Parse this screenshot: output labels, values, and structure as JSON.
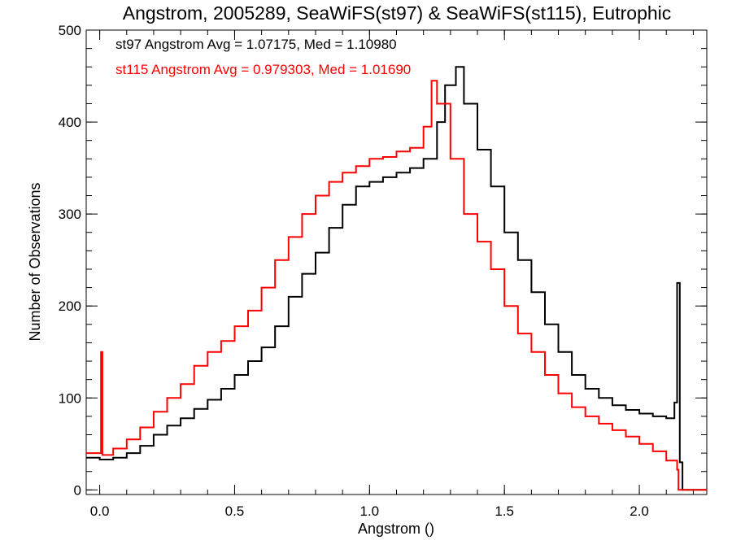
{
  "chart_data": {
    "type": "line",
    "title": "Angstrom, 2005289, SeaWiFS(st97) & SeaWiFS(st115), Eutrophic",
    "xlabel": "Angstrom ()",
    "ylabel": "Number of Observations",
    "xlim": [
      -0.05,
      2.25
    ],
    "ylim": [
      -5,
      500
    ],
    "x_ticks": [
      0.0,
      0.5,
      1.0,
      1.5,
      2.0
    ],
    "x_tick_labels": [
      "0.0",
      "0.5",
      "1.0",
      "1.5",
      "2.0"
    ],
    "y_ticks": [
      0,
      100,
      200,
      300,
      400,
      500
    ],
    "y_tick_labels": [
      "0",
      "100",
      "200",
      "300",
      "400",
      "500"
    ],
    "x_minor_step": 0.1,
    "y_minor_step": 20,
    "grid": false,
    "legend_position": "top-left",
    "annotations": [
      {
        "text": "st97 Angstrom Avg = 1.07175, Med = 1.10980",
        "color": "#000000"
      },
      {
        "text": "st115 Angstrom Avg = 0.979303, Med = 1.01690",
        "color": "#ff0000"
      }
    ],
    "series": [
      {
        "color": "#000000",
        "step": true,
        "points": [
          [
            -0.05,
            35
          ],
          [
            0.0,
            33
          ],
          [
            0.05,
            35
          ],
          [
            0.1,
            40
          ],
          [
            0.15,
            48
          ],
          [
            0.2,
            60
          ],
          [
            0.25,
            70
          ],
          [
            0.3,
            78
          ],
          [
            0.35,
            88
          ],
          [
            0.4,
            98
          ],
          [
            0.45,
            110
          ],
          [
            0.5,
            125
          ],
          [
            0.55,
            140
          ],
          [
            0.6,
            155
          ],
          [
            0.65,
            178
          ],
          [
            0.7,
            210
          ],
          [
            0.75,
            235
          ],
          [
            0.8,
            258
          ],
          [
            0.85,
            285
          ],
          [
            0.9,
            310
          ],
          [
            0.95,
            330
          ],
          [
            1.0,
            335
          ],
          [
            1.05,
            340
          ],
          [
            1.1,
            345
          ],
          [
            1.15,
            350
          ],
          [
            1.2,
            360
          ],
          [
            1.25,
            400
          ],
          [
            1.28,
            440
          ],
          [
            1.32,
            460
          ],
          [
            1.35,
            420
          ],
          [
            1.4,
            370
          ],
          [
            1.45,
            330
          ],
          [
            1.5,
            280
          ],
          [
            1.55,
            250
          ],
          [
            1.6,
            215
          ],
          [
            1.65,
            180
          ],
          [
            1.7,
            150
          ],
          [
            1.75,
            125
          ],
          [
            1.8,
            110
          ],
          [
            1.85,
            100
          ],
          [
            1.9,
            92
          ],
          [
            1.95,
            87
          ],
          [
            2.0,
            83
          ],
          [
            2.05,
            80
          ],
          [
            2.1,
            78
          ],
          [
            2.13,
            95
          ],
          [
            2.14,
            225
          ],
          [
            2.15,
            30
          ],
          [
            2.16,
            0
          ],
          [
            2.25,
            0
          ]
        ]
      },
      {
        "color": "#ff0000",
        "step": true,
        "points": [
          [
            -0.05,
            40
          ],
          [
            0.0,
            40
          ],
          [
            0.005,
            150
          ],
          [
            0.01,
            38
          ],
          [
            0.05,
            45
          ],
          [
            0.1,
            55
          ],
          [
            0.15,
            68
          ],
          [
            0.2,
            85
          ],
          [
            0.25,
            100
          ],
          [
            0.3,
            115
          ],
          [
            0.35,
            135
          ],
          [
            0.4,
            150
          ],
          [
            0.45,
            162
          ],
          [
            0.5,
            178
          ],
          [
            0.55,
            195
          ],
          [
            0.6,
            220
          ],
          [
            0.65,
            250
          ],
          [
            0.7,
            275
          ],
          [
            0.75,
            300
          ],
          [
            0.8,
            320
          ],
          [
            0.85,
            335
          ],
          [
            0.9,
            345
          ],
          [
            0.95,
            352
          ],
          [
            1.0,
            360
          ],
          [
            1.05,
            362
          ],
          [
            1.1,
            368
          ],
          [
            1.15,
            372
          ],
          [
            1.2,
            395
          ],
          [
            1.23,
            445
          ],
          [
            1.25,
            420
          ],
          [
            1.28,
            420
          ],
          [
            1.3,
            360
          ],
          [
            1.35,
            300
          ],
          [
            1.4,
            270
          ],
          [
            1.45,
            240
          ],
          [
            1.5,
            200
          ],
          [
            1.55,
            170
          ],
          [
            1.6,
            150
          ],
          [
            1.65,
            125
          ],
          [
            1.7,
            105
          ],
          [
            1.75,
            90
          ],
          [
            1.8,
            80
          ],
          [
            1.85,
            72
          ],
          [
            1.9,
            65
          ],
          [
            1.95,
            58
          ],
          [
            2.0,
            50
          ],
          [
            2.05,
            42
          ],
          [
            2.1,
            32
          ],
          [
            2.14,
            22
          ],
          [
            2.145,
            0
          ],
          [
            2.25,
            0
          ]
        ]
      }
    ]
  }
}
